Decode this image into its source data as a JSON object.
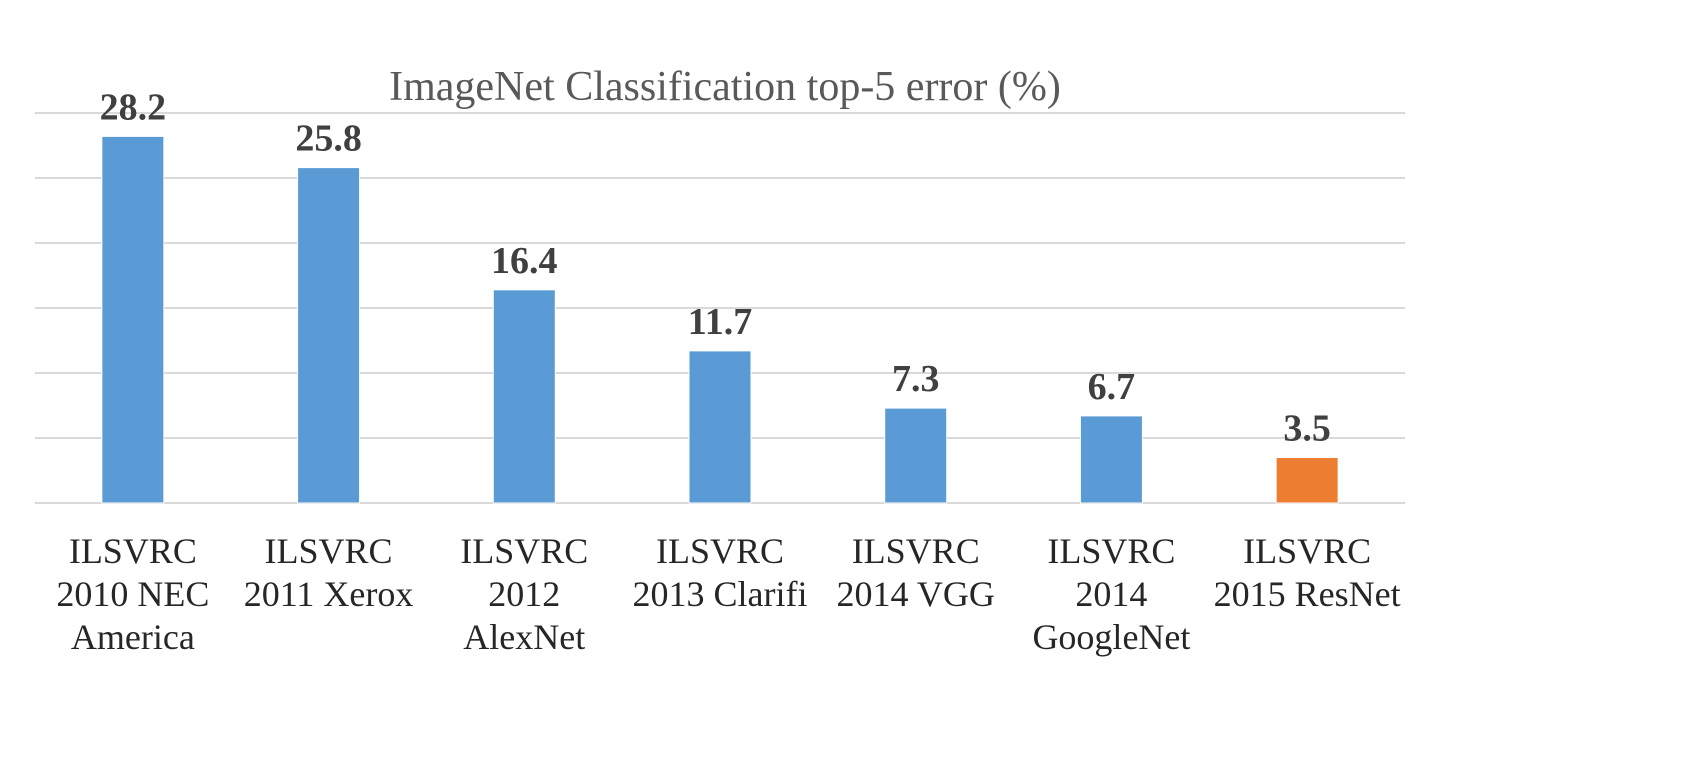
{
  "chart_data": {
    "type": "bar",
    "title": "ImageNet Classification top-5 error (%)",
    "xlabel": "",
    "ylabel": "",
    "ylim": [
      0,
      30
    ],
    "grid": true,
    "legend": "none",
    "categories": [
      [
        "ILSVRC",
        "2010 NEC",
        "America"
      ],
      [
        "ILSVRC",
        "2011 Xerox"
      ],
      [
        "ILSVRC",
        "2012",
        "AlexNet"
      ],
      [
        "ILSVRC",
        "2013 Clarifi"
      ],
      [
        "ILSVRC",
        "2014 VGG"
      ],
      [
        "ILSVRC",
        "2014",
        "GoogleNet"
      ],
      [
        "ILSVRC",
        "2015 ResNet"
      ]
    ],
    "values": [
      28.2,
      25.8,
      16.4,
      11.7,
      7.3,
      6.7,
      3.5
    ],
    "data_labels": [
      "28.2",
      "25.8",
      "16.4",
      "11.7",
      "7.3",
      "6.7",
      "3.5"
    ],
    "bar_colors": [
      "#5b9bd5",
      "#5b9bd5",
      "#5b9bd5",
      "#5b9bd5",
      "#5b9bd5",
      "#5b9bd5",
      "#ed7d31"
    ]
  }
}
